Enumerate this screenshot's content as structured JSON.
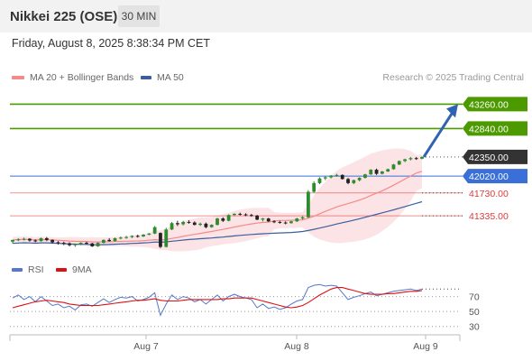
{
  "header": {
    "title": "Nikkei 225 (OSE)",
    "timeframe": "30 MIN"
  },
  "timestamp": "Friday, August 8, 2025 8:38:34 PM CET",
  "legend": {
    "bollinger": "MA 20 + Bollinger Bands",
    "ma50": "MA 50"
  },
  "credit": "Research © 2025 Trading Central",
  "rsi_legend": {
    "rsi": "RSI",
    "ma": "9MA"
  },
  "colors": {
    "candle_up": "#2e8b2e",
    "candle_down": "#222222",
    "ma20": "#f58a8a",
    "ma50": "#3b5f9c",
    "band_fill": "#fadadd",
    "resistance": "#4c9a00",
    "support": "#e03a3a",
    "pivot": "#3a6fd8",
    "arrow": "#2f62b0",
    "rsi": "#5577cc",
    "rsi_ma": "#dd1111",
    "price_tag": "#333333"
  },
  "chart_data": [
    {
      "type": "candlestick",
      "x_axis": {
        "tick_labels": [
          "Aug 7",
          "Aug 8",
          "Aug 9"
        ]
      },
      "y_range": [
        40700,
        43500
      ],
      "levels": [
        {
          "label": "43260.00",
          "value": 43260,
          "kind": "resistance"
        },
        {
          "label": "42840.00",
          "value": 42840,
          "kind": "resistance"
        },
        {
          "label": "42350.00",
          "value": 42350,
          "kind": "last_price"
        },
        {
          "label": "42020.00",
          "value": 42020,
          "kind": "pivot"
        },
        {
          "label": "41730.00",
          "value": 41730,
          "kind": "support"
        },
        {
          "label": "41335.00",
          "value": 41335,
          "kind": "support"
        }
      ],
      "candles": [
        [
          40890,
          40920,
          40860,
          40920
        ],
        [
          40920,
          40950,
          40900,
          40930
        ],
        [
          40930,
          40960,
          40910,
          40940
        ],
        [
          40940,
          40950,
          40890,
          40910
        ],
        [
          40910,
          40930,
          40880,
          40900
        ],
        [
          40900,
          40960,
          40890,
          40950
        ],
        [
          40950,
          40970,
          40900,
          40920
        ],
        [
          40920,
          40930,
          40860,
          40880
        ],
        [
          40880,
          40900,
          40840,
          40870
        ],
        [
          40870,
          40890,
          40830,
          40860
        ],
        [
          40860,
          40880,
          40810,
          40830
        ],
        [
          40830,
          40860,
          40800,
          40850
        ],
        [
          40850,
          40880,
          40830,
          40870
        ],
        [
          40870,
          40890,
          40840,
          40860
        ],
        [
          40860,
          40870,
          40800,
          40810
        ],
        [
          40810,
          40880,
          40800,
          40870
        ],
        [
          40870,
          40930,
          40860,
          40920
        ],
        [
          40920,
          40950,
          40890,
          40900
        ],
        [
          40900,
          40960,
          40890,
          40950
        ],
        [
          40950,
          40980,
          40930,
          40960
        ],
        [
          40960,
          40990,
          40940,
          40970
        ],
        [
          40970,
          41000,
          40950,
          40990
        ],
        [
          40990,
          41010,
          40960,
          40980
        ],
        [
          40980,
          41020,
          40970,
          41010
        ],
        [
          41010,
          41040,
          41000,
          41030
        ],
        [
          41030,
          41160,
          41020,
          41140
        ],
        [
          41040,
          41050,
          40780,
          40800
        ],
        [
          40800,
          41130,
          40790,
          41100
        ],
        [
          41100,
          41230,
          41090,
          41210
        ],
        [
          41210,
          41250,
          41160,
          41190
        ],
        [
          41190,
          41250,
          41170,
          41230
        ],
        [
          41230,
          41260,
          41200,
          41220
        ],
        [
          41220,
          41240,
          41170,
          41180
        ],
        [
          41180,
          41220,
          41160,
          41200
        ],
        [
          41200,
          41220,
          41120,
          41140
        ],
        [
          41140,
          41190,
          41130,
          41180
        ],
        [
          41180,
          41300,
          41170,
          41290
        ],
        [
          41290,
          41310,
          41230,
          41250
        ],
        [
          41250,
          41360,
          41240,
          41350
        ],
        [
          41350,
          41380,
          41330,
          41370
        ],
        [
          41370,
          41390,
          41340,
          41360
        ],
        [
          41360,
          41380,
          41330,
          41350
        ],
        [
          41350,
          41370,
          41320,
          41340
        ],
        [
          41340,
          41350,
          41260,
          41270
        ],
        [
          41270,
          41300,
          41240,
          41290
        ],
        [
          41290,
          41300,
          41230,
          41240
        ],
        [
          41240,
          41260,
          41210,
          41230
        ],
        [
          41230,
          41250,
          41200,
          41220
        ],
        [
          41220,
          41240,
          41190,
          41210
        ],
        [
          41210,
          41250,
          41200,
          41240
        ],
        [
          41240,
          41300,
          41230,
          41290
        ],
        [
          41290,
          41330,
          41270,
          41310
        ],
        [
          41310,
          41780,
          41300,
          41750
        ],
        [
          41750,
          41930,
          41730,
          41900
        ],
        [
          41900,
          42000,
          41880,
          41980
        ],
        [
          41980,
          42020,
          41950,
          42000
        ],
        [
          42000,
          42040,
          41980,
          42030
        ],
        [
          42030,
          42060,
          42010,
          42040
        ],
        [
          42040,
          42050,
          41960,
          41970
        ],
        [
          41970,
          41990,
          41880,
          41900
        ],
        [
          41900,
          41960,
          41880,
          41950
        ],
        [
          41950,
          42000,
          41930,
          41990
        ],
        [
          41990,
          42060,
          41980,
          42050
        ],
        [
          42050,
          42140,
          42040,
          42130
        ],
        [
          42130,
          42150,
          42040,
          42060
        ],
        [
          42060,
          42110,
          42050,
          42100
        ],
        [
          42100,
          42150,
          42090,
          42140
        ],
        [
          42140,
          42230,
          42130,
          42220
        ],
        [
          42220,
          42290,
          42210,
          42280
        ],
        [
          42280,
          42320,
          42260,
          42310
        ],
        [
          42310,
          42350,
          42290,
          42330
        ],
        [
          42330,
          42350,
          42300,
          42320
        ],
        [
          42320,
          42360,
          42310,
          42350
        ]
      ]
    },
    {
      "type": "line",
      "title": "RSI",
      "y_ticks": [
        70,
        50,
        30
      ],
      "y_range": [
        20,
        90
      ],
      "series": [
        {
          "name": "RSI",
          "values": [
            68,
            72,
            66,
            70,
            63,
            70,
            64,
            58,
            60,
            55,
            57,
            52,
            59,
            60,
            57,
            62,
            67,
            62,
            66,
            69,
            68,
            70,
            64,
            66,
            69,
            75,
            45,
            60,
            72,
            66,
            70,
            68,
            63,
            66,
            60,
            66,
            72,
            64,
            70,
            73,
            70,
            68,
            66,
            55,
            60,
            54,
            56,
            53,
            55,
            60,
            64,
            66,
            82,
            85,
            86,
            84,
            85,
            84,
            75,
            66,
            69,
            71,
            74,
            76,
            71,
            73,
            75,
            77,
            78,
            79,
            80,
            78,
            80
          ]
        },
        {
          "name": "9MA",
          "values": [
            55,
            57,
            59,
            61,
            63,
            64,
            65,
            64,
            63,
            62,
            60,
            59,
            58,
            58,
            58,
            58,
            59,
            60,
            61,
            62,
            63,
            64,
            65,
            65,
            66,
            67,
            65,
            64,
            64,
            64,
            65,
            66,
            66,
            66,
            66,
            66,
            66,
            67,
            67,
            68,
            68,
            68,
            68,
            66,
            64,
            62,
            60,
            58,
            56,
            55,
            56,
            58,
            62,
            67,
            72,
            76,
            80,
            82,
            82,
            80,
            78,
            76,
            74,
            73,
            73,
            73,
            74,
            74,
            75,
            76,
            77,
            77,
            78
          ]
        }
      ]
    }
  ]
}
